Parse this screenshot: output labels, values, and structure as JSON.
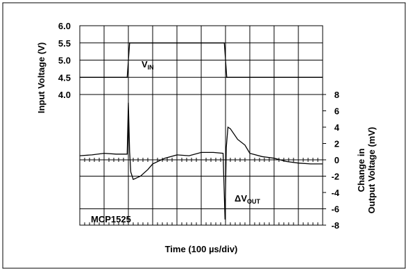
{
  "chart_data": {
    "type": "line",
    "title": "",
    "xlabel": "Time (100 µs/div)",
    "ylabel_left": "Input Voltage (V)",
    "ylabel_right": [
      "Change in",
      "Output Voltage (mV)"
    ],
    "x_divisions": 10,
    "left_axis": {
      "ticks": [
        "6.0",
        "5.5",
        "5.0",
        "4.5",
        "4.0"
      ],
      "range": [
        4.0,
        6.0
      ]
    },
    "right_axis": {
      "ticks": [
        "8",
        "6",
        "4",
        "2",
        "0",
        "-2",
        "-4",
        "-6",
        "-8"
      ],
      "range": [
        -8,
        8
      ]
    },
    "grid": true,
    "annotations": {
      "vin": {
        "base": "V",
        "sub": "IN"
      },
      "dvout": {
        "base": "ΔV",
        "sub": "OUT"
      },
      "device": "MCP1525"
    },
    "series": [
      {
        "name": "VIN",
        "axis": "left",
        "x_div": [
          0,
          1.95,
          2.05,
          5.95,
          6.05,
          10
        ],
        "values": [
          4.5,
          4.5,
          5.5,
          5.5,
          4.5,
          4.5
        ]
      },
      {
        "name": "ΔVOUT",
        "axis": "right",
        "x_div": [
          0,
          0.5,
          1.0,
          1.5,
          1.95,
          2.0,
          2.05,
          2.1,
          2.2,
          2.5,
          2.8,
          3.0,
          3.5,
          4.0,
          4.5,
          5.0,
          5.5,
          5.9,
          5.98,
          6.03,
          6.1,
          6.2,
          6.5,
          6.8,
          7.0,
          7.5,
          8.0,
          8.5,
          9.0,
          9.5,
          10.0
        ],
        "values": [
          0.5,
          0.6,
          0.8,
          0.7,
          0.7,
          7.0,
          1.0,
          -1.5,
          -2.4,
          -2.0,
          -1.2,
          -0.5,
          0.2,
          0.6,
          0.5,
          0.9,
          0.9,
          0.8,
          -7.3,
          1.5,
          4.0,
          3.8,
          2.5,
          1.8,
          0.8,
          0.4,
          0.2,
          -0.2,
          -0.4,
          -0.5,
          -0.5
        ]
      }
    ]
  }
}
